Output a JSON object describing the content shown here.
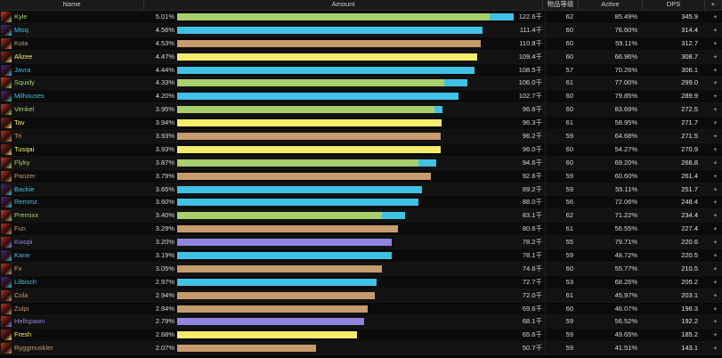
{
  "headers": {
    "name": "Name",
    "amount": "Amount",
    "ilvl": "物品等级",
    "active": "Active",
    "dps": "DPS",
    "plus": "+"
  },
  "classes": {
    "hunter": {
      "color": "#a7cf6b",
      "icon": "hunter-class-icon",
      "icon_bg": "#c8412a"
    },
    "mage": {
      "color": "#3fc2e6",
      "icon": "mage-class-icon",
      "icon_bg": "#3a2e8a"
    },
    "warrior": {
      "color": "#c69b6d",
      "icon": "warrior-class-icon",
      "icon_bg": "#b23a1a"
    },
    "rogue": {
      "color": "#f4ec6a",
      "icon": "rogue-class-icon",
      "icon_bg": "#8a2a20"
    },
    "warlock": {
      "color": "#8f85e0",
      "icon": "warlock-class-icon",
      "icon_bg": "#c0302a"
    }
  },
  "pet_color": "#3fc2e6",
  "rows": [
    {
      "name": "Kyle",
      "cls": "hunter",
      "pct": "5.01%",
      "amount": 122.6,
      "amount_label": "122.6千",
      "pet_fraction": 0.07,
      "ilvl": "62",
      "active": "85.49%",
      "dps": "345.9"
    },
    {
      "name": "Misq",
      "cls": "mage",
      "pct": "4.56%",
      "amount": 111.4,
      "amount_label": "111.4千",
      "ilvl": "60",
      "active": "76.60%",
      "dps": "314.4"
    },
    {
      "name": "Kota",
      "cls": "warrior",
      "pct": "4.53%",
      "amount": 110.8,
      "amount_label": "110.8千",
      "ilvl": "60",
      "active": "59.11%",
      "dps": "312.7"
    },
    {
      "name": "Alizee",
      "cls": "rogue",
      "pct": "4.47%",
      "amount": 109.4,
      "amount_label": "109.4千",
      "ilvl": "60",
      "active": "66.96%",
      "dps": "308.7"
    },
    {
      "name": "Javra",
      "cls": "mage",
      "pct": "4.44%",
      "amount": 108.5,
      "amount_label": "108.5千",
      "ilvl": "57",
      "active": "70.26%",
      "dps": "306.1"
    },
    {
      "name": "Squidy",
      "cls": "hunter",
      "pct": "4.33%",
      "amount": 106.0,
      "amount_label": "106.0千",
      "pet_fraction": 0.08,
      "ilvl": "61",
      "active": "77.00%",
      "dps": "299.0"
    },
    {
      "name": "Milhouses",
      "cls": "mage",
      "pct": "4.20%",
      "amount": 102.7,
      "amount_label": "102.7千",
      "ilvl": "60",
      "active": "79.85%",
      "dps": "289.9"
    },
    {
      "name": "Venkel",
      "cls": "hunter",
      "pct": "3.95%",
      "amount": 96.6,
      "amount_label": "96.6千",
      "pet_fraction": 0.03,
      "ilvl": "60",
      "active": "83.69%",
      "dps": "272.5"
    },
    {
      "name": "Tav",
      "cls": "rogue",
      "pct": "3.94%",
      "amount": 96.3,
      "amount_label": "96.3千",
      "ilvl": "61",
      "active": "58.95%",
      "dps": "271.7"
    },
    {
      "name": "Tri",
      "cls": "warrior",
      "pct": "3.93%",
      "amount": 96.2,
      "amount_label": "96.2千",
      "ilvl": "59",
      "active": "64.68%",
      "dps": "271.5"
    },
    {
      "name": "Tusqai",
      "cls": "rogue",
      "pct": "3.93%",
      "amount": 96.0,
      "amount_label": "96.0千",
      "ilvl": "60",
      "active": "54.27%",
      "dps": "270.9"
    },
    {
      "name": "Flyky",
      "cls": "hunter",
      "pct": "3.87%",
      "amount": 94.6,
      "amount_label": "94.6千",
      "pet_fraction": 0.07,
      "ilvl": "60",
      "active": "69.20%",
      "dps": "266.8"
    },
    {
      "name": "Panzer",
      "cls": "warrior",
      "pct": "3.79%",
      "amount": 92.6,
      "amount_label": "92.6千",
      "ilvl": "59",
      "active": "60.60%",
      "dps": "261.4"
    },
    {
      "name": "Backie",
      "cls": "mage",
      "pct": "3.65%",
      "amount": 89.2,
      "amount_label": "89.2千",
      "ilvl": "59",
      "active": "55.11%",
      "dps": "251.7"
    },
    {
      "name": "Remmz",
      "cls": "mage",
      "pct": "3.60%",
      "amount": 88.0,
      "amount_label": "88.0千",
      "ilvl": "56",
      "active": "72.06%",
      "dps": "248.4"
    },
    {
      "name": "Premixx",
      "cls": "hunter",
      "pct": "3.40%",
      "amount": 83.1,
      "amount_label": "83.1千",
      "pet_fraction": 0.1,
      "ilvl": "62",
      "active": "71.22%",
      "dps": "234.4"
    },
    {
      "name": "Fun",
      "cls": "warrior",
      "pct": "3.29%",
      "amount": 80.6,
      "amount_label": "80.6千",
      "ilvl": "61",
      "active": "56.55%",
      "dps": "227.4"
    },
    {
      "name": "Kwopi",
      "cls": "warlock",
      "pct": "3.20%",
      "amount": 78.2,
      "amount_label": "78.2千",
      "ilvl": "55",
      "active": "79.71%",
      "dps": "220.6"
    },
    {
      "name": "Kane",
      "cls": "mage",
      "pct": "3.19%",
      "amount": 78.1,
      "amount_label": "78.1千",
      "ilvl": "59",
      "active": "48.72%",
      "dps": "220.5"
    },
    {
      "name": "Fx",
      "cls": "warrior",
      "pct": "3.05%",
      "amount": 74.6,
      "amount_label": "74.6千",
      "ilvl": "60",
      "active": "55.77%",
      "dps": "210.5"
    },
    {
      "name": "Lilbisch",
      "cls": "mage",
      "pct": "2.97%",
      "amount": 72.7,
      "amount_label": "72.7千",
      "ilvl": "53",
      "active": "68.26%",
      "dps": "205.2"
    },
    {
      "name": "Cola",
      "cls": "warrior",
      "pct": "2.94%",
      "amount": 72.0,
      "amount_label": "72.0千",
      "ilvl": "61",
      "active": "45.97%",
      "dps": "203.1"
    },
    {
      "name": "Zulpi",
      "cls": "warrior",
      "pct": "2.84%",
      "amount": 69.6,
      "amount_label": "69.6千",
      "ilvl": "60",
      "active": "46.07%",
      "dps": "196.3"
    },
    {
      "name": "Hellspawn",
      "cls": "warlock",
      "pct": "2.79%",
      "amount": 68.1,
      "amount_label": "68.1千",
      "ilvl": "59",
      "active": "56.52%",
      "dps": "192.2"
    },
    {
      "name": "Fresh",
      "cls": "rogue",
      "pct": "2.68%",
      "amount": 65.6,
      "amount_label": "65.6千",
      "ilvl": "59",
      "active": "49.65%",
      "dps": "185.2"
    },
    {
      "name": "Ryggmuskler",
      "cls": "warrior",
      "pct": "2.07%",
      "amount": 50.7,
      "amount_label": "50.7千",
      "ilvl": "59",
      "active": "41.51%",
      "dps": "143.1"
    }
  ]
}
